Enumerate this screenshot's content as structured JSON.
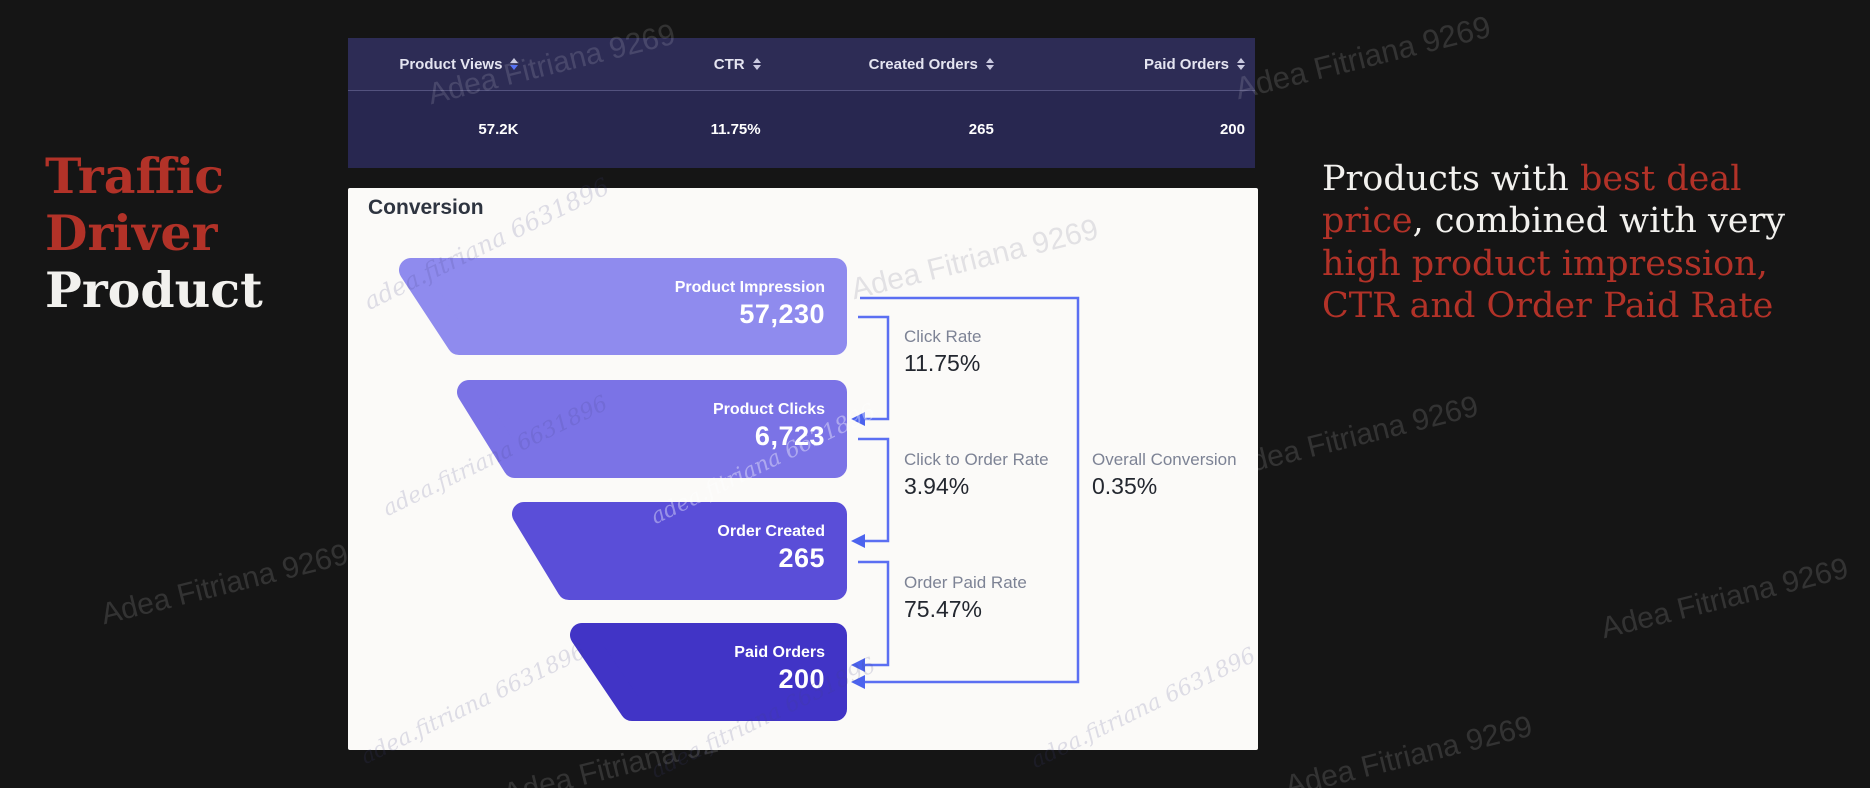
{
  "title": {
    "segments": [
      {
        "text": "Traffic Driver ",
        "style": "red"
      },
      {
        "text": "Product",
        "style": "white"
      }
    ]
  },
  "table": {
    "columns": [
      {
        "label": "Product Views",
        "value": "57.2K",
        "sort": "desc"
      },
      {
        "label": "CTR",
        "value": "11.75%",
        "sort": "none"
      },
      {
        "label": "Created Orders",
        "value": "265",
        "sort": "none"
      },
      {
        "label": "Paid Orders",
        "value": "200",
        "sort": "none"
      }
    ]
  },
  "panel": {
    "title": "Conversion"
  },
  "chart_data": {
    "type": "funnel",
    "title": "Conversion",
    "stages": [
      {
        "label": "Product Impression",
        "value": 57230,
        "display": "57,230"
      },
      {
        "label": "Product Clicks",
        "value": 6723,
        "display": "6,723"
      },
      {
        "label": "Order Created",
        "value": 265,
        "display": "265"
      },
      {
        "label": "Paid Orders",
        "value": 200,
        "display": "200"
      }
    ],
    "rates": [
      {
        "label": "Click Rate",
        "value": "11.75%",
        "from": "Product Impression",
        "to": "Product Clicks"
      },
      {
        "label": "Click to Order Rate",
        "value": "3.94%",
        "from": "Product Clicks",
        "to": "Order Created"
      },
      {
        "label": "Order Paid Rate",
        "value": "75.47%",
        "from": "Order Created",
        "to": "Paid Orders"
      },
      {
        "label": "Overall Conversion",
        "value": "0.35%",
        "from": "Product Impression",
        "to": "Paid Orders"
      }
    ],
    "colors": [
      "#8f8bee",
      "#7b73e6",
      "#5a4ed8",
      "#4134c6"
    ],
    "legend_position": "none",
    "grid": false
  },
  "annotation": {
    "segments": [
      {
        "text": "Products with ",
        "style": "white"
      },
      {
        "text": "best deal price",
        "style": "red"
      },
      {
        "text": ", combined with very ",
        "style": "white"
      },
      {
        "text": "high product impression, CTR and Order Paid Rate",
        "style": "red"
      }
    ]
  },
  "watermarks": {
    "primary": "Adea Fitriana 9269",
    "secondary": "adea.fitriana 6631896"
  },
  "colors": {
    "background": "#151515",
    "table_header_bg": "#2d2c55",
    "table_row_bg": "#282750",
    "table_divider": "#53527e",
    "panel_bg": "#fbfaf8",
    "accent_red": "#b23228",
    "text_white": "#f2f1ee",
    "arrow_blue": "#5b6ff2",
    "rate_label_gray": "#7d8395",
    "rate_value_dark": "#23272f",
    "sort_active_blue": "#5672f5"
  }
}
